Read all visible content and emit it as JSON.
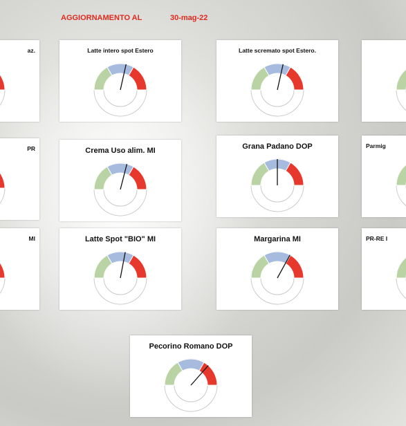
{
  "header": {
    "label": "AGGIORNAMENTO AL",
    "date": "30-mag-22"
  },
  "gauge_colors": [
    "#b9d3a4",
    "#a7bbdf",
    "#e6382c"
  ],
  "chart_data": [
    {
      "type": "gauge",
      "title": "Latte intero spot Estero",
      "value": 57
    },
    {
      "type": "gauge",
      "title": "Latte scremato spot Estero.",
      "value": 57
    },
    {
      "type": "gauge",
      "title": "Crema Uso alim. MI",
      "value": 58
    },
    {
      "type": "gauge",
      "title": "Grana Padano DOP",
      "value": 50
    },
    {
      "type": "gauge",
      "title": "Latte Spot \"BIO\" MI",
      "value": 56
    },
    {
      "type": "gauge",
      "title": "Margarina MI",
      "value": 66
    },
    {
      "type": "gauge",
      "title": "Pecorino Romano DOP",
      "value": 73
    }
  ],
  "partial_cards": [
    {
      "title": "az."
    },
    {},
    {
      "title": "PR"
    },
    {
      "title": "Parmig"
    },
    {
      "title": "MI"
    },
    {
      "title": "PR-RE I"
    }
  ]
}
